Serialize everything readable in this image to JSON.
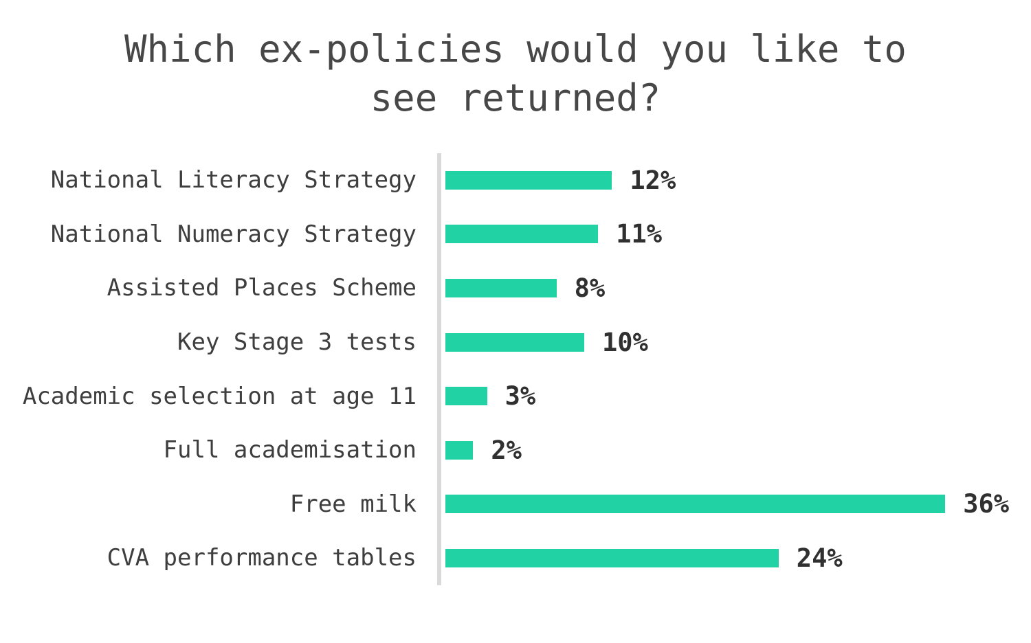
{
  "page": {
    "background_color": "#ffffff"
  },
  "chart_data": {
    "type": "bar",
    "orientation": "horizontal",
    "title": "Which ex-policies would you like to see returned?",
    "categories": [
      "National Literacy Strategy",
      "National Numeracy Strategy",
      "Assisted Places Scheme",
      "Key Stage 3 tests",
      "Academic selection at age 11",
      "Full academisation",
      "Free milk",
      "CVA performance tables"
    ],
    "values": [
      12,
      11,
      8,
      10,
      3,
      2,
      36,
      24
    ],
    "value_labels": [
      "12%",
      "11%",
      "8%",
      "10%",
      "3%",
      "2%",
      "36%",
      "24%"
    ],
    "unit": "%",
    "xlim": [
      0,
      40
    ],
    "grid": "off",
    "legend": "none",
    "bar_color": "#20d2a4",
    "axis_line_color": "#dadada",
    "title_color": "#474747",
    "category_label_color": "#3e3e3e",
    "value_label_color": "#303030"
  }
}
